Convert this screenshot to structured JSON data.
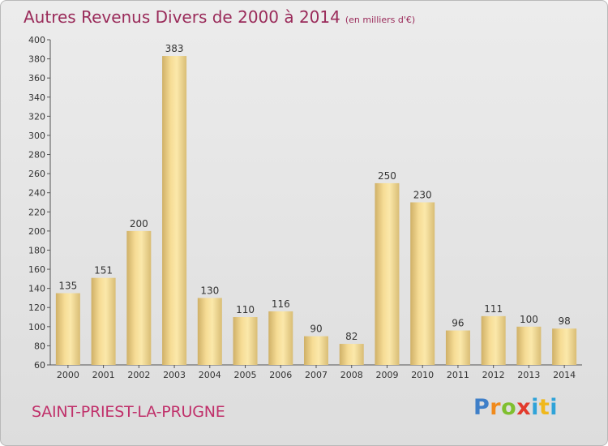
{
  "header": {
    "title": "Autres Revenus Divers de 2000 à 2014",
    "unit": "(en milliers d'€)"
  },
  "footer": {
    "commune": "SAINT-PRIEST-LA-PRUGNE",
    "logo": "Proxiti"
  },
  "colors": {
    "title": "#9a2b5a",
    "commune": "#c0306a",
    "bar_light": "#f9e3a0",
    "bar_dark": "#d2b56c"
  },
  "chart_data": {
    "type": "bar",
    "title": "Autres Revenus Divers de 2000 à 2014",
    "subtitle": "(en milliers d'€)",
    "categories": [
      "2000",
      "2001",
      "2002",
      "2003",
      "2004",
      "2005",
      "2006",
      "2007",
      "2008",
      "2009",
      "2010",
      "2011",
      "2012",
      "2013",
      "2014"
    ],
    "values": [
      135,
      151,
      200,
      383,
      130,
      110,
      116,
      90,
      82,
      250,
      230,
      96,
      111,
      100,
      98
    ],
    "ylim": [
      60,
      400
    ],
    "yticks": [
      60,
      80,
      100,
      120,
      140,
      160,
      180,
      200,
      220,
      240,
      260,
      280,
      300,
      320,
      340,
      360,
      380,
      400
    ],
    "grid": false,
    "data_labels": true
  }
}
